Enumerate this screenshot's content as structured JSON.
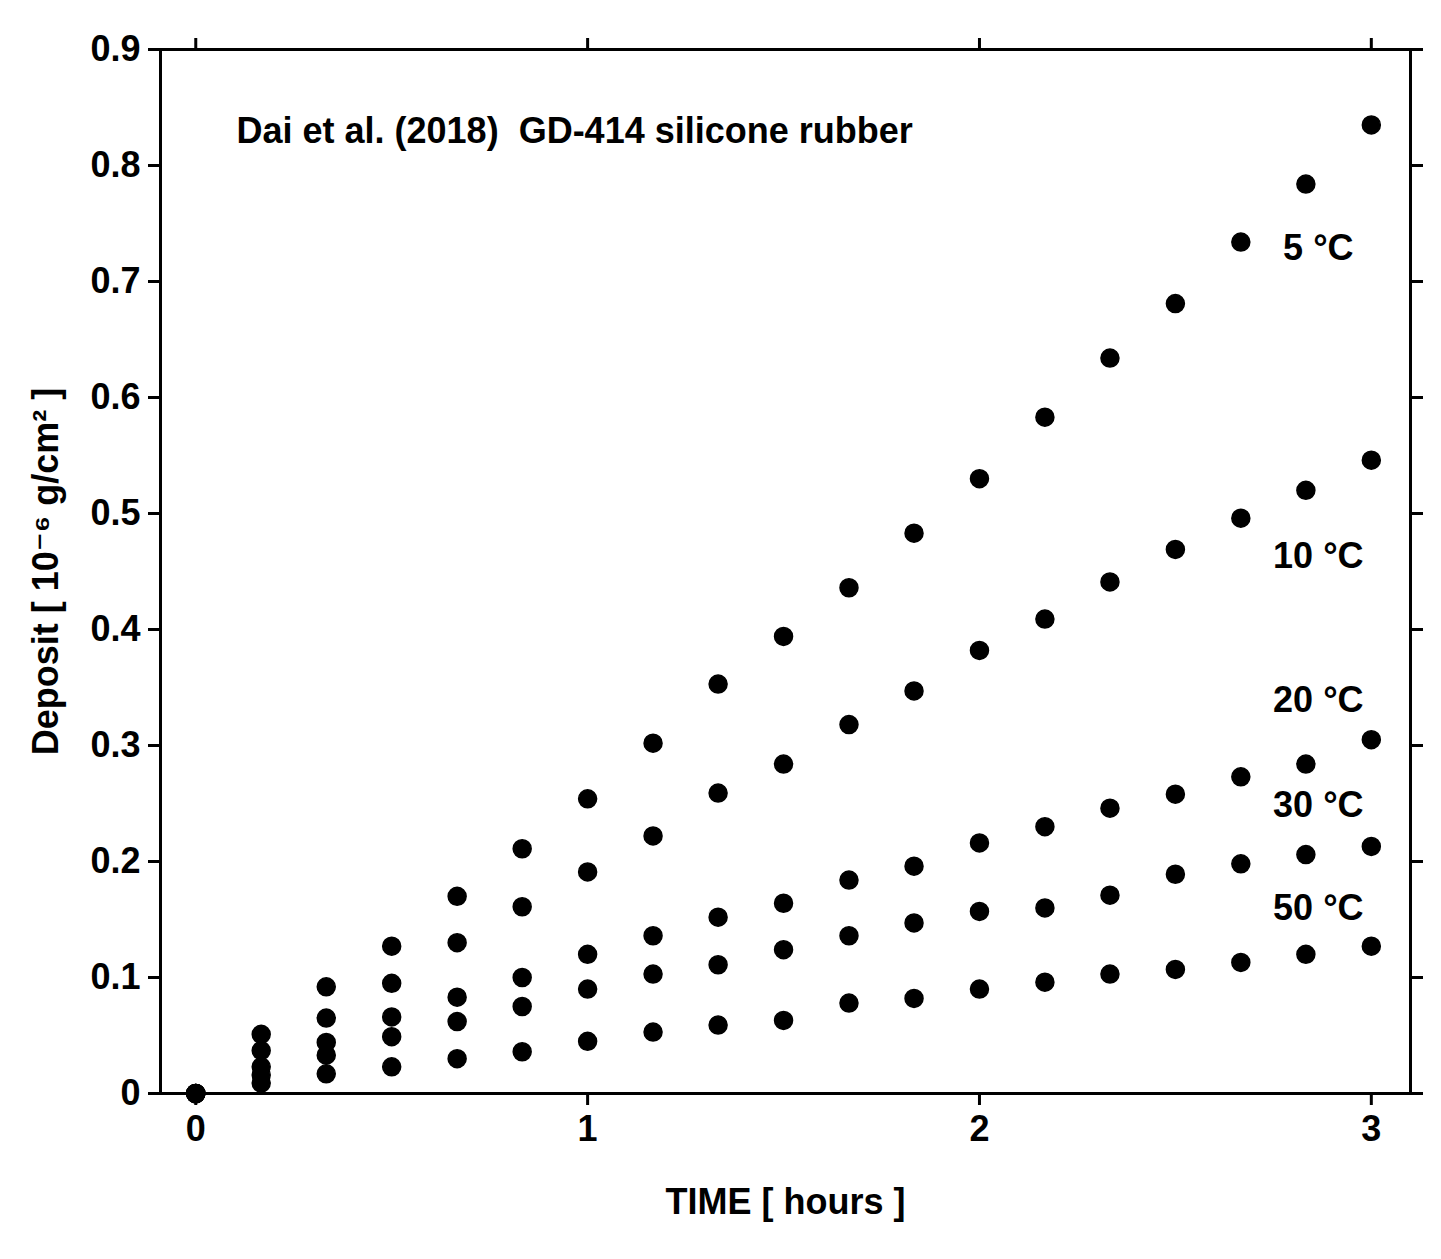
{
  "chart_data": {
    "type": "scatter",
    "title": "Dai et al. (2018)  GD-414 silicone rubber",
    "x_label": "TIME [ hours ]",
    "y_label": "Deposit [ 10⁻⁶ g/cm² ]",
    "x": [
      0,
      0.167,
      0.333,
      0.5,
      0.667,
      0.833,
      1,
      1.167,
      1.333,
      1.5,
      1.667,
      1.833,
      2,
      2.167,
      2.333,
      2.5,
      2.667,
      2.833,
      3
    ],
    "series": [
      {
        "name": "5 °C",
        "color": "#000000",
        "marker": "circle",
        "values": [
          0,
          0.051,
          0.092,
          0.127,
          0.17,
          0.211,
          0.254,
          0.302,
          0.353,
          0.394,
          0.436,
          0.483,
          0.53,
          0.583,
          0.634,
          0.681,
          0.734,
          0.784,
          0.835
        ]
      },
      {
        "name": "10 °C",
        "color": "#000000",
        "marker": "circle",
        "values": [
          0,
          0.037,
          0.065,
          0.095,
          0.13,
          0.161,
          0.191,
          0.222,
          0.259,
          0.284,
          0.318,
          0.347,
          0.382,
          0.409,
          0.441,
          0.469,
          0.496,
          0.52,
          0.546
        ]
      },
      {
        "name": "20 °C",
        "color": "#000000",
        "marker": "circle",
        "values": [
          0,
          0.023,
          0.044,
          0.066,
          0.083,
          0.1,
          0.12,
          0.136,
          0.152,
          0.164,
          0.184,
          0.196,
          0.216,
          0.23,
          0.246,
          0.258,
          0.273,
          0.284,
          0.305
        ]
      },
      {
        "name": "30 °C",
        "color": "#000000",
        "marker": "circle",
        "values": [
          0,
          0.016,
          0.033,
          0.049,
          0.062,
          0.075,
          0.09,
          0.103,
          0.111,
          0.124,
          0.136,
          0.147,
          0.157,
          0.16,
          0.171,
          0.189,
          0.198,
          0.206,
          0.213
        ]
      },
      {
        "name": "50 °C",
        "color": "#000000",
        "marker": "circle",
        "values": [
          0,
          0.009,
          0.017,
          0.023,
          0.03,
          0.036,
          0.045,
          0.053,
          0.059,
          0.063,
          0.078,
          0.082,
          0.09,
          0.096,
          0.103,
          0.107,
          0.113,
          0.12,
          0.127
        ]
      }
    ],
    "xlim": [
      -0.09,
      3.1
    ],
    "ylim": [
      0,
      0.9
    ],
    "xticks": [
      0,
      1,
      2,
      3
    ],
    "yticks": [
      0,
      0.1,
      0.2,
      0.3,
      0.4,
      0.5,
      0.6,
      0.7,
      0.8,
      0.9
    ],
    "grid": false
  }
}
